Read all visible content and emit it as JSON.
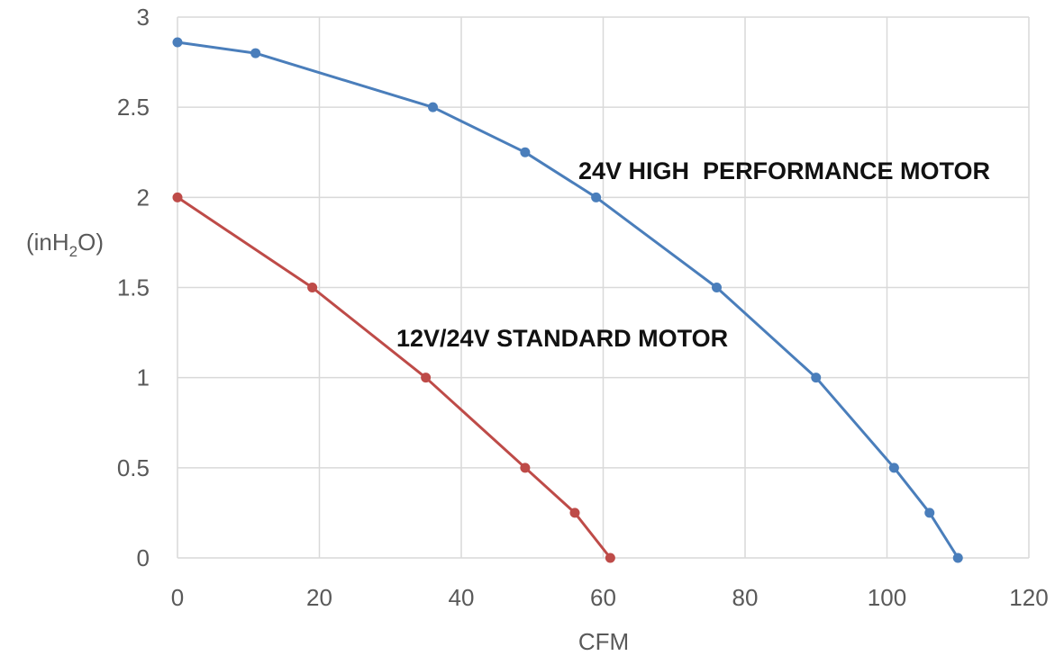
{
  "chart_data": {
    "type": "line",
    "title": "",
    "xlabel": "CFM",
    "ylabel_parts": {
      "before": "(inH",
      "sub": "2",
      "after": "O)"
    },
    "xlim": [
      0,
      120
    ],
    "ylim": [
      0,
      3
    ],
    "xticks": [
      0,
      20,
      40,
      60,
      80,
      100,
      120
    ],
    "yticks": [
      0,
      0.5,
      1,
      1.5,
      2,
      2.5,
      3
    ],
    "grid": true,
    "series": [
      {
        "name": "24V HIGH  PERFORMANCE MOTOR",
        "color": "#4a7ebb",
        "x": [
          0,
          11,
          36,
          49,
          59,
          76,
          90,
          101,
          106,
          110
        ],
        "y": [
          2.86,
          2.8,
          2.5,
          2.25,
          2.0,
          1.5,
          1.0,
          0.5,
          0.25,
          0.0
        ]
      },
      {
        "name": "12V/24V STANDARD MOTOR",
        "color": "#be4b48",
        "x": [
          0,
          19,
          35,
          49,
          56,
          61
        ],
        "y": [
          2.0,
          1.5,
          1.0,
          0.5,
          0.25,
          0.0
        ]
      }
    ]
  }
}
